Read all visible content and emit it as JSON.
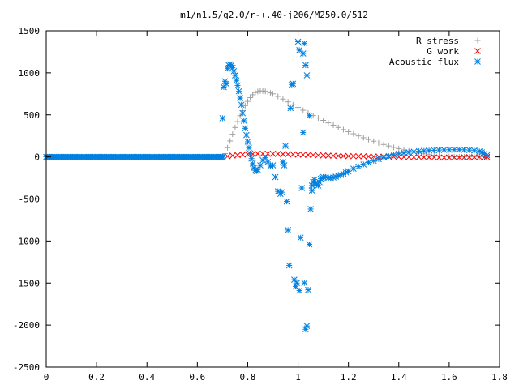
{
  "chart_data": {
    "type": "scatter",
    "title": "m1/n1.5/q2.0/r-+.40-j206/M250.0/512",
    "xlabel": "",
    "ylabel": "",
    "xlim": [
      0,
      1.8
    ],
    "ylim": [
      -2500,
      1500
    ],
    "x_ticks": [
      "0",
      "0.2",
      "0.4",
      "0.6",
      "0.8",
      "1",
      "1.2",
      "1.4",
      "1.6",
      "1.8"
    ],
    "y_ticks": [
      "1500",
      "1000",
      "500",
      "0",
      "-500",
      "-1000",
      "-1500",
      "-2000",
      "-2500"
    ],
    "grid": false,
    "legend_position": "top-right",
    "series": [
      {
        "name": "R stress",
        "marker": "+",
        "color": "#a0a0a0",
        "points": [
          [
            0.7,
            0
          ],
          [
            0.71,
            40
          ],
          [
            0.72,
            110
          ],
          [
            0.73,
            190
          ],
          [
            0.74,
            270
          ],
          [
            0.75,
            350
          ],
          [
            0.76,
            420
          ],
          [
            0.77,
            490
          ],
          [
            0.78,
            550
          ],
          [
            0.79,
            610
          ],
          [
            0.8,
            660
          ],
          [
            0.81,
            705
          ],
          [
            0.82,
            740
          ],
          [
            0.83,
            765
          ],
          [
            0.84,
            778
          ],
          [
            0.85,
            785
          ],
          [
            0.86,
            785
          ],
          [
            0.87,
            780
          ],
          [
            0.88,
            772
          ],
          [
            0.89,
            762
          ],
          [
            0.9,
            750
          ],
          [
            0.92,
            720
          ],
          [
            0.94,
            688
          ],
          [
            0.96,
            655
          ],
          [
            0.98,
            620
          ],
          [
            1.0,
            588
          ],
          [
            1.02,
            555
          ],
          [
            1.04,
            523
          ],
          [
            1.06,
            492
          ],
          [
            1.08,
            463
          ],
          [
            1.1,
            435
          ],
          [
            1.12,
            405
          ],
          [
            1.14,
            378
          ],
          [
            1.16,
            350
          ],
          [
            1.18,
            325
          ],
          [
            1.2,
            300
          ],
          [
            1.22,
            275
          ],
          [
            1.24,
            250
          ],
          [
            1.26,
            228
          ],
          [
            1.28,
            207
          ],
          [
            1.3,
            187
          ],
          [
            1.32,
            166
          ],
          [
            1.34,
            148
          ],
          [
            1.36,
            130
          ],
          [
            1.38,
            113
          ],
          [
            1.4,
            98
          ],
          [
            1.42,
            84
          ],
          [
            1.44,
            70
          ],
          [
            1.46,
            58
          ],
          [
            1.48,
            47
          ],
          [
            1.5,
            37
          ],
          [
            1.52,
            28
          ],
          [
            1.54,
            20
          ],
          [
            1.56,
            14
          ],
          [
            1.58,
            9
          ],
          [
            1.6,
            5
          ],
          [
            1.62,
            3
          ],
          [
            1.64,
            1
          ],
          [
            1.66,
            0
          ],
          [
            1.68,
            0
          ],
          [
            1.7,
            0
          ],
          [
            1.72,
            0
          ],
          [
            1.74,
            0
          ],
          [
            1.75,
            0
          ]
        ]
      },
      {
        "name": "G work",
        "marker": "x",
        "color": "#ff0000",
        "points": [
          [
            0.7,
            0
          ],
          [
            0.72,
            8
          ],
          [
            0.74,
            16
          ],
          [
            0.76,
            22
          ],
          [
            0.78,
            28
          ],
          [
            0.8,
            32
          ],
          [
            0.82,
            35
          ],
          [
            0.84,
            37
          ],
          [
            0.86,
            38
          ],
          [
            0.88,
            38
          ],
          [
            0.9,
            37
          ],
          [
            0.92,
            36
          ],
          [
            0.94,
            34
          ],
          [
            0.96,
            32
          ],
          [
            0.98,
            30
          ],
          [
            1.0,
            28
          ],
          [
            1.02,
            26
          ],
          [
            1.04,
            24
          ],
          [
            1.06,
            22
          ],
          [
            1.08,
            20
          ],
          [
            1.1,
            18
          ],
          [
            1.12,
            16
          ],
          [
            1.14,
            14
          ],
          [
            1.16,
            12
          ],
          [
            1.18,
            11
          ],
          [
            1.2,
            10
          ],
          [
            1.22,
            9
          ],
          [
            1.24,
            8
          ],
          [
            1.26,
            7
          ],
          [
            1.28,
            6
          ],
          [
            1.3,
            5
          ],
          [
            1.32,
            4
          ],
          [
            1.34,
            3
          ],
          [
            1.36,
            2
          ],
          [
            1.38,
            1
          ],
          [
            1.4,
            0
          ],
          [
            1.42,
            -1
          ],
          [
            1.44,
            -2
          ],
          [
            1.46,
            -3
          ],
          [
            1.48,
            -4
          ],
          [
            1.5,
            -5
          ],
          [
            1.52,
            -6
          ],
          [
            1.54,
            -6
          ],
          [
            1.56,
            -7
          ],
          [
            1.58,
            -7
          ],
          [
            1.6,
            -7
          ],
          [
            1.62,
            -6
          ],
          [
            1.64,
            -6
          ],
          [
            1.66,
            -5
          ],
          [
            1.68,
            -4
          ],
          [
            1.7,
            -3
          ],
          [
            1.72,
            -2
          ],
          [
            1.74,
            -1
          ],
          [
            1.75,
            0
          ]
        ]
      },
      {
        "name": "Acoustic flux",
        "marker": "*",
        "color": "#0080e0",
        "points": [
          [
            0.7,
            460
          ],
          [
            0.705,
            830
          ],
          [
            0.71,
            900
          ],
          [
            0.715,
            870
          ],
          [
            0.72,
            1050
          ],
          [
            0.725,
            1090
          ],
          [
            0.73,
            1100
          ],
          [
            0.735,
            1090
          ],
          [
            0.74,
            1060
          ],
          [
            0.745,
            1020
          ],
          [
            0.75,
            970
          ],
          [
            0.755,
            910
          ],
          [
            0.76,
            850
          ],
          [
            0.765,
            780
          ],
          [
            0.77,
            700
          ],
          [
            0.775,
            620
          ],
          [
            0.78,
            520
          ],
          [
            0.785,
            430
          ],
          [
            0.79,
            340
          ],
          [
            0.795,
            260
          ],
          [
            0.8,
            180
          ],
          [
            0.805,
            110
          ],
          [
            0.81,
            40
          ],
          [
            0.815,
            -20
          ],
          [
            0.82,
            -80
          ],
          [
            0.825,
            -130
          ],
          [
            0.83,
            -160
          ],
          [
            0.835,
            -170
          ],
          [
            0.84,
            -150
          ],
          [
            0.85,
            -100
          ],
          [
            0.86,
            -40
          ],
          [
            0.87,
            -10
          ],
          [
            0.88,
            -60
          ],
          [
            0.89,
            -110
          ],
          [
            0.9,
            -100
          ],
          [
            0.91,
            -240
          ],
          [
            0.92,
            -410
          ],
          [
            0.93,
            -440
          ],
          [
            0.935,
            -420
          ],
          [
            0.94,
            -60
          ],
          [
            0.945,
            -100
          ],
          [
            0.95,
            130
          ],
          [
            0.955,
            -530
          ],
          [
            0.96,
            -870
          ],
          [
            0.965,
            -1290
          ],
          [
            0.97,
            580
          ],
          [
            0.975,
            860
          ],
          [
            0.98,
            870
          ],
          [
            0.985,
            -1460
          ],
          [
            0.99,
            -1540
          ],
          [
            0.995,
            -1500
          ],
          [
            1.0,
            1370
          ],
          [
            1.005,
            -1590
          ],
          [
            1.01,
            -960
          ],
          [
            1.015,
            -370
          ],
          [
            1.02,
            290
          ],
          [
            1.025,
            -1500
          ],
          [
            1.03,
            -2050
          ],
          [
            1.035,
            -2010
          ],
          [
            1.04,
            -1580
          ],
          [
            1.045,
            -1040
          ],
          [
            1.05,
            -620
          ],
          [
            1.055,
            -340
          ],
          [
            1.06,
            -300
          ],
          [
            1.065,
            -270
          ],
          [
            1.07,
            -310
          ],
          [
            1.075,
            -330
          ],
          [
            1.08,
            -340
          ],
          [
            1.085,
            -300
          ],
          [
            1.09,
            -260
          ],
          [
            1.095,
            -250
          ],
          [
            1.1,
            -240
          ],
          [
            1.11,
            -240
          ],
          [
            1.12,
            -250
          ],
          [
            1.13,
            -250
          ],
          [
            1.14,
            -245
          ],
          [
            1.15,
            -235
          ],
          [
            1.16,
            -225
          ],
          [
            1.17,
            -215
          ],
          [
            1.18,
            -200
          ],
          [
            1.19,
            -185
          ],
          [
            1.2,
            -170
          ],
          [
            1.22,
            -140
          ],
          [
            1.24,
            -115
          ],
          [
            1.26,
            -90
          ],
          [
            1.28,
            -65
          ],
          [
            1.3,
            -45
          ],
          [
            1.32,
            -25
          ],
          [
            1.34,
            -5
          ],
          [
            1.36,
            10
          ],
          [
            1.38,
            25
          ],
          [
            1.4,
            38
          ],
          [
            1.42,
            48
          ],
          [
            1.44,
            55
          ],
          [
            1.46,
            62
          ],
          [
            1.48,
            68
          ],
          [
            1.5,
            72
          ],
          [
            1.52,
            76
          ],
          [
            1.54,
            79
          ],
          [
            1.56,
            82
          ],
          [
            1.58,
            84
          ],
          [
            1.6,
            85
          ],
          [
            1.62,
            86
          ],
          [
            1.64,
            86
          ],
          [
            1.66,
            85
          ],
          [
            1.68,
            82
          ],
          [
            1.7,
            76
          ],
          [
            1.72,
            66
          ],
          [
            1.73,
            55
          ],
          [
            1.74,
            40
          ],
          [
            1.75,
            20
          ]
        ],
        "extra_points": [
          [
            1.005,
            1270
          ],
          [
            1.02,
            1230
          ],
          [
            1.03,
            1090
          ],
          [
            1.025,
            1350
          ],
          [
            1.035,
            970
          ],
          [
            1.045,
            490
          ],
          [
            1.055,
            -400
          ]
        ]
      },
      {
        "name": "Acoustic flux baseline",
        "marker": "*",
        "color": "#0080e0",
        "legend": false,
        "range": [
          0.0,
          0.7
        ],
        "value": 0
      }
    ]
  }
}
